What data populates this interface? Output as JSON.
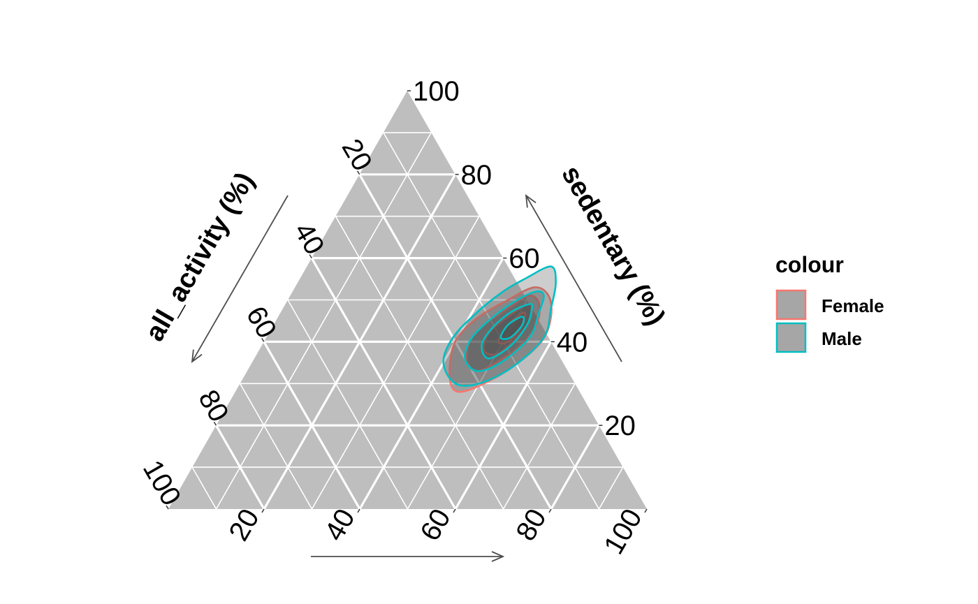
{
  "chart_data": {
    "type": "ternary-density-contour",
    "axes": {
      "bottom": {
        "label": "",
        "ticks": [
          20,
          40,
          60,
          80,
          100
        ]
      },
      "left": {
        "label": "all_activity (%)",
        "ticks": [
          20,
          40,
          60,
          80,
          100
        ]
      },
      "right": {
        "label": "sedentary (%)",
        "ticks": [
          20,
          40,
          60,
          80,
          100
        ]
      }
    },
    "grid": {
      "major_step": 20,
      "minor_step": 10
    },
    "colors": {
      "panel": "#bebebe",
      "grid": "#ffffff",
      "Female": "#f8766d",
      "Male": "#00bfc4",
      "fill": "#4d4d4d",
      "arrow": "#4d4d4d"
    },
    "legend": {
      "title": "colour",
      "position": "right",
      "entries": [
        "Female",
        "Male"
      ]
    },
    "series": [
      {
        "name": "Female",
        "levels": [
          [
            [
              50,
              53
            ],
            [
              46,
              50
            ],
            [
              42,
              46
            ],
            [
              40,
              41
            ],
            [
              41,
              36
            ],
            [
              44,
              30
            ],
            [
              47,
              28
            ],
            [
              51,
              30
            ],
            [
              55,
              34
            ],
            [
              58,
              40
            ],
            [
              57,
              46
            ],
            [
              54,
              51
            ]
          ],
          [
            [
              50,
              51
            ],
            [
              47,
              48
            ],
            [
              44,
              44
            ],
            [
              43,
              40
            ],
            [
              45,
              35
            ],
            [
              48,
              33
            ],
            [
              51,
              35
            ],
            [
              54,
              39
            ],
            [
              55,
              44
            ],
            [
              53,
              49
            ]
          ],
          [
            [
              51,
              49
            ],
            [
              48,
              46
            ],
            [
              46,
              42
            ],
            [
              47,
              38
            ],
            [
              50,
              37
            ],
            [
              52,
              40
            ],
            [
              53,
              45
            ]
          ],
          [
            [
              51,
              47
            ],
            [
              49,
              44
            ],
            [
              49,
              40
            ],
            [
              51,
              40
            ],
            [
              52,
              43
            ]
          ]
        ]
      },
      {
        "name": "Male",
        "levels": [
          [
            [
              51,
              58
            ],
            [
              47,
              55
            ],
            [
              44,
              52
            ],
            [
              41,
              47
            ],
            [
              39,
              41
            ],
            [
              40,
              35
            ],
            [
              45,
              30
            ],
            [
              50,
              30
            ],
            [
              55,
              34
            ],
            [
              58,
              41
            ],
            [
              56,
              48
            ],
            [
              54,
              54
            ]
          ],
          [
            [
              51,
              52
            ],
            [
              48,
              50
            ],
            [
              45,
              46
            ],
            [
              43,
              41
            ],
            [
              44,
              36
            ],
            [
              48,
              33
            ],
            [
              52,
              35
            ],
            [
              55,
              41
            ],
            [
              54,
              47
            ],
            [
              53,
              51
            ]
          ],
          [
            [
              51,
              49
            ],
            [
              48,
              47
            ],
            [
              46,
              43
            ],
            [
              46,
              39
            ],
            [
              49,
              36
            ],
            [
              52,
              39
            ],
            [
              53,
              44
            ],
            [
              52,
              48
            ]
          ],
          [
            [
              51,
              46
            ],
            [
              49,
              44
            ],
            [
              49,
              41
            ],
            [
              51,
              41
            ],
            [
              52,
              44
            ]
          ]
        ]
      }
    ]
  }
}
